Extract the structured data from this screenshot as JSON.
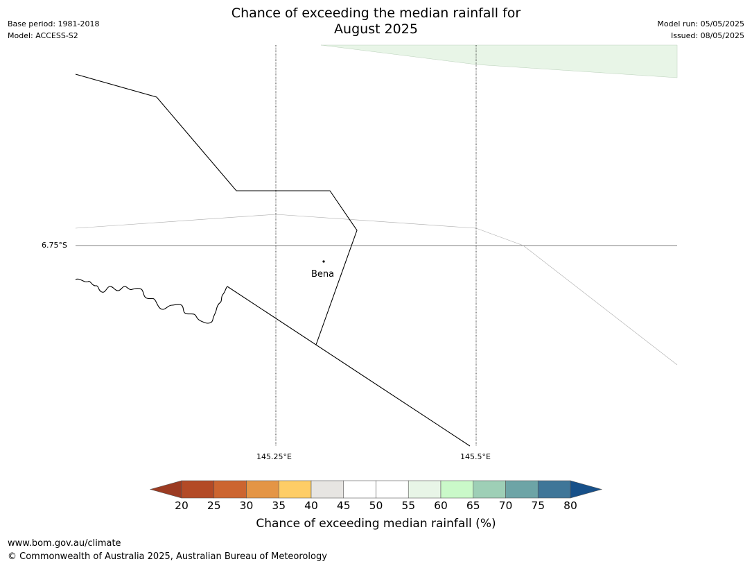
{
  "title": {
    "line1": "Chance of exceeding the median rainfall for",
    "line2": "August 2025"
  },
  "meta_left": {
    "base_period": "Base period: 1981-2018",
    "model": "Model: ACCESS-S2"
  },
  "meta_right": {
    "model_run": "Model run: 05/05/2025",
    "issued": "Issued: 08/05/2025"
  },
  "map": {
    "place_name": "Bena",
    "lat_label": "6.75°S",
    "lon_labels": [
      "145.25°E",
      "145.5°E"
    ]
  },
  "colorbar": {
    "tick_labels": [
      "20",
      "25",
      "30",
      "35",
      "40",
      "45",
      "50",
      "55",
      "60",
      "65",
      "70",
      "75",
      "80"
    ],
    "title": "Chance of exceeding median rainfall (%)",
    "colors": [
      "#9c3b22",
      "#b34a26",
      "#cc6530",
      "#e49545",
      "#fecd66",
      "#e7e5e2",
      "#ffffff",
      "#ffffff",
      "#e8f5e7",
      "#caf9c9",
      "#9ecfb6",
      "#6da4a6",
      "#3f7698",
      "#175089"
    ]
  },
  "footer": {
    "url": "www.bom.gov.au/climate",
    "copyright": "© Commonwealth of Australia 2025, Australian Bureau of Meteorology"
  }
}
